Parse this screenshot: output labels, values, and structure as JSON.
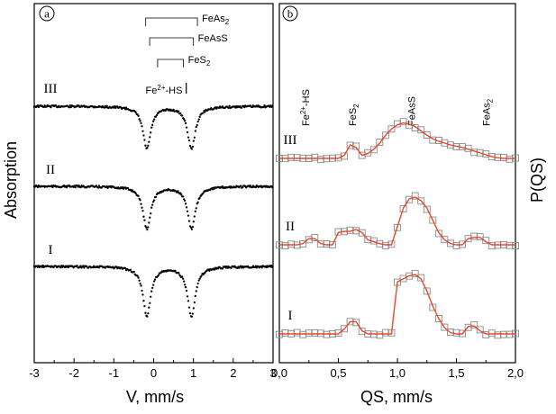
{
  "chart_data": [
    {
      "panel_label": "a",
      "type": "scatter",
      "xlabel": "V, mm/s",
      "ylabel": "Absorption",
      "xlim": [
        -3,
        3
      ],
      "xticks": [
        "-3",
        "-2",
        "-1",
        "0",
        "1",
        "2",
        "3"
      ],
      "series": [
        {
          "name": "III",
          "baseline": 1.0,
          "doublet": {
            "center": 0.39,
            "qs": 1.12,
            "width": 0.24,
            "depth": 0.6
          }
        },
        {
          "name": "II",
          "baseline": 1.0,
          "doublet": {
            "center": 0.39,
            "qs": 1.12,
            "width": 0.24,
            "depth": 0.6
          }
        },
        {
          "name": "I",
          "baseline": 1.0,
          "doublet": {
            "center": 0.39,
            "qs": 1.12,
            "width": 0.24,
            "depth": 0.7
          }
        }
      ],
      "annotations": {
        "brackets": [
          {
            "label": "FeAs",
            "sub": "2",
            "v_from": -0.2,
            "v_to": 1.1
          },
          {
            "label": "FeAsS",
            "sub": "",
            "v_from": -0.1,
            "v_to": 1.0
          },
          {
            "label": "FeS",
            "sub": "2",
            "v_from": 0.1,
            "v_to": 0.75
          }
        ],
        "fe2_label": {
          "pre": "Fe",
          "sup": "2+",
          "post": "-HS",
          "v": 0.82
        }
      }
    },
    {
      "panel_label": "b",
      "type": "line",
      "xlabel": "QS, mm/s",
      "ylabel": "P(QS)",
      "xlim": [
        0.0,
        2.0
      ],
      "xticks": [
        "0,0",
        "0,5",
        "1,0",
        "1,5",
        "2,0"
      ],
      "phase_labels": [
        {
          "pre": "Fe",
          "sup": "2+",
          "post": "-HS",
          "qs": 0.22
        },
        {
          "pre": "FeS",
          "sub": "2",
          "qs": 0.62
        },
        {
          "pre": "FeAsS",
          "qs": 1.12
        },
        {
          "pre": "FeAs",
          "sub": "2",
          "qs": 1.75
        }
      ],
      "series": [
        {
          "name": "III",
          "qs": [
            0.0,
            0.05,
            0.1,
            0.15,
            0.2,
            0.25,
            0.3,
            0.35,
            0.4,
            0.45,
            0.5,
            0.55,
            0.6,
            0.65,
            0.7,
            0.75,
            0.8,
            0.85,
            0.9,
            0.95,
            1.0,
            1.05,
            1.1,
            1.15,
            1.2,
            1.25,
            1.3,
            1.35,
            1.4,
            1.45,
            1.5,
            1.55,
            1.6,
            1.65,
            1.7,
            1.75,
            1.8,
            1.85,
            1.9,
            1.95,
            2.0
          ],
          "p": [
            0,
            0,
            0,
            0,
            0,
            0,
            0,
            0,
            0,
            0,
            0,
            0.05,
            0.22,
            0.18,
            0.05,
            0.08,
            0.15,
            0.25,
            0.38,
            0.48,
            0.55,
            0.58,
            0.56,
            0.52,
            0.45,
            0.38,
            0.32,
            0.28,
            0.25,
            0.22,
            0.2,
            0.18,
            0.15,
            0.12,
            0.09,
            0.06,
            0.03,
            0.01,
            0,
            0,
            0
          ]
        },
        {
          "name": "II",
          "qs": [
            0.0,
            0.05,
            0.1,
            0.15,
            0.2,
            0.25,
            0.3,
            0.35,
            0.4,
            0.45,
            0.5,
            0.55,
            0.6,
            0.65,
            0.7,
            0.75,
            0.8,
            0.85,
            0.9,
            0.95,
            1.0,
            1.05,
            1.1,
            1.15,
            1.2,
            1.25,
            1.3,
            1.35,
            1.4,
            1.45,
            1.5,
            1.55,
            1.6,
            1.65,
            1.7,
            1.75,
            1.8,
            1.85,
            1.9,
            1.95,
            2.0
          ],
          "p": [
            0,
            0,
            0,
            0,
            0.02,
            0.1,
            0.1,
            0.02,
            0,
            0,
            0.2,
            0.22,
            0.22,
            0.25,
            0.2,
            0.08,
            0.05,
            0.02,
            0,
            0,
            0.3,
            0.6,
            0.75,
            0.78,
            0.72,
            0.6,
            0.4,
            0.2,
            0.08,
            0.02,
            0,
            0,
            0.1,
            0.12,
            0.12,
            0.05,
            0,
            0,
            0,
            0,
            0
          ]
        },
        {
          "name": "I",
          "qs": [
            0.0,
            0.05,
            0.1,
            0.15,
            0.2,
            0.25,
            0.3,
            0.35,
            0.4,
            0.45,
            0.5,
            0.55,
            0.6,
            0.65,
            0.7,
            0.75,
            0.8,
            0.85,
            0.9,
            0.95,
            1.0,
            1.05,
            1.1,
            1.15,
            1.2,
            1.25,
            1.3,
            1.35,
            1.4,
            1.45,
            1.5,
            1.55,
            1.6,
            1.65,
            1.7,
            1.75,
            1.8,
            1.85,
            1.9,
            1.95,
            2.0
          ],
          "p": [
            0,
            0,
            0,
            0,
            0,
            0,
            0,
            0,
            0,
            0,
            0,
            0.08,
            0.2,
            0.2,
            0.05,
            0,
            0,
            0,
            0,
            0,
            0.85,
            0.9,
            0.95,
            0.97,
            0.9,
            0.7,
            0.45,
            0.25,
            0.1,
            0.02,
            0,
            0,
            0.12,
            0.13,
            0.05,
            0,
            0,
            0,
            0,
            0,
            0
          ]
        }
      ]
    }
  ]
}
